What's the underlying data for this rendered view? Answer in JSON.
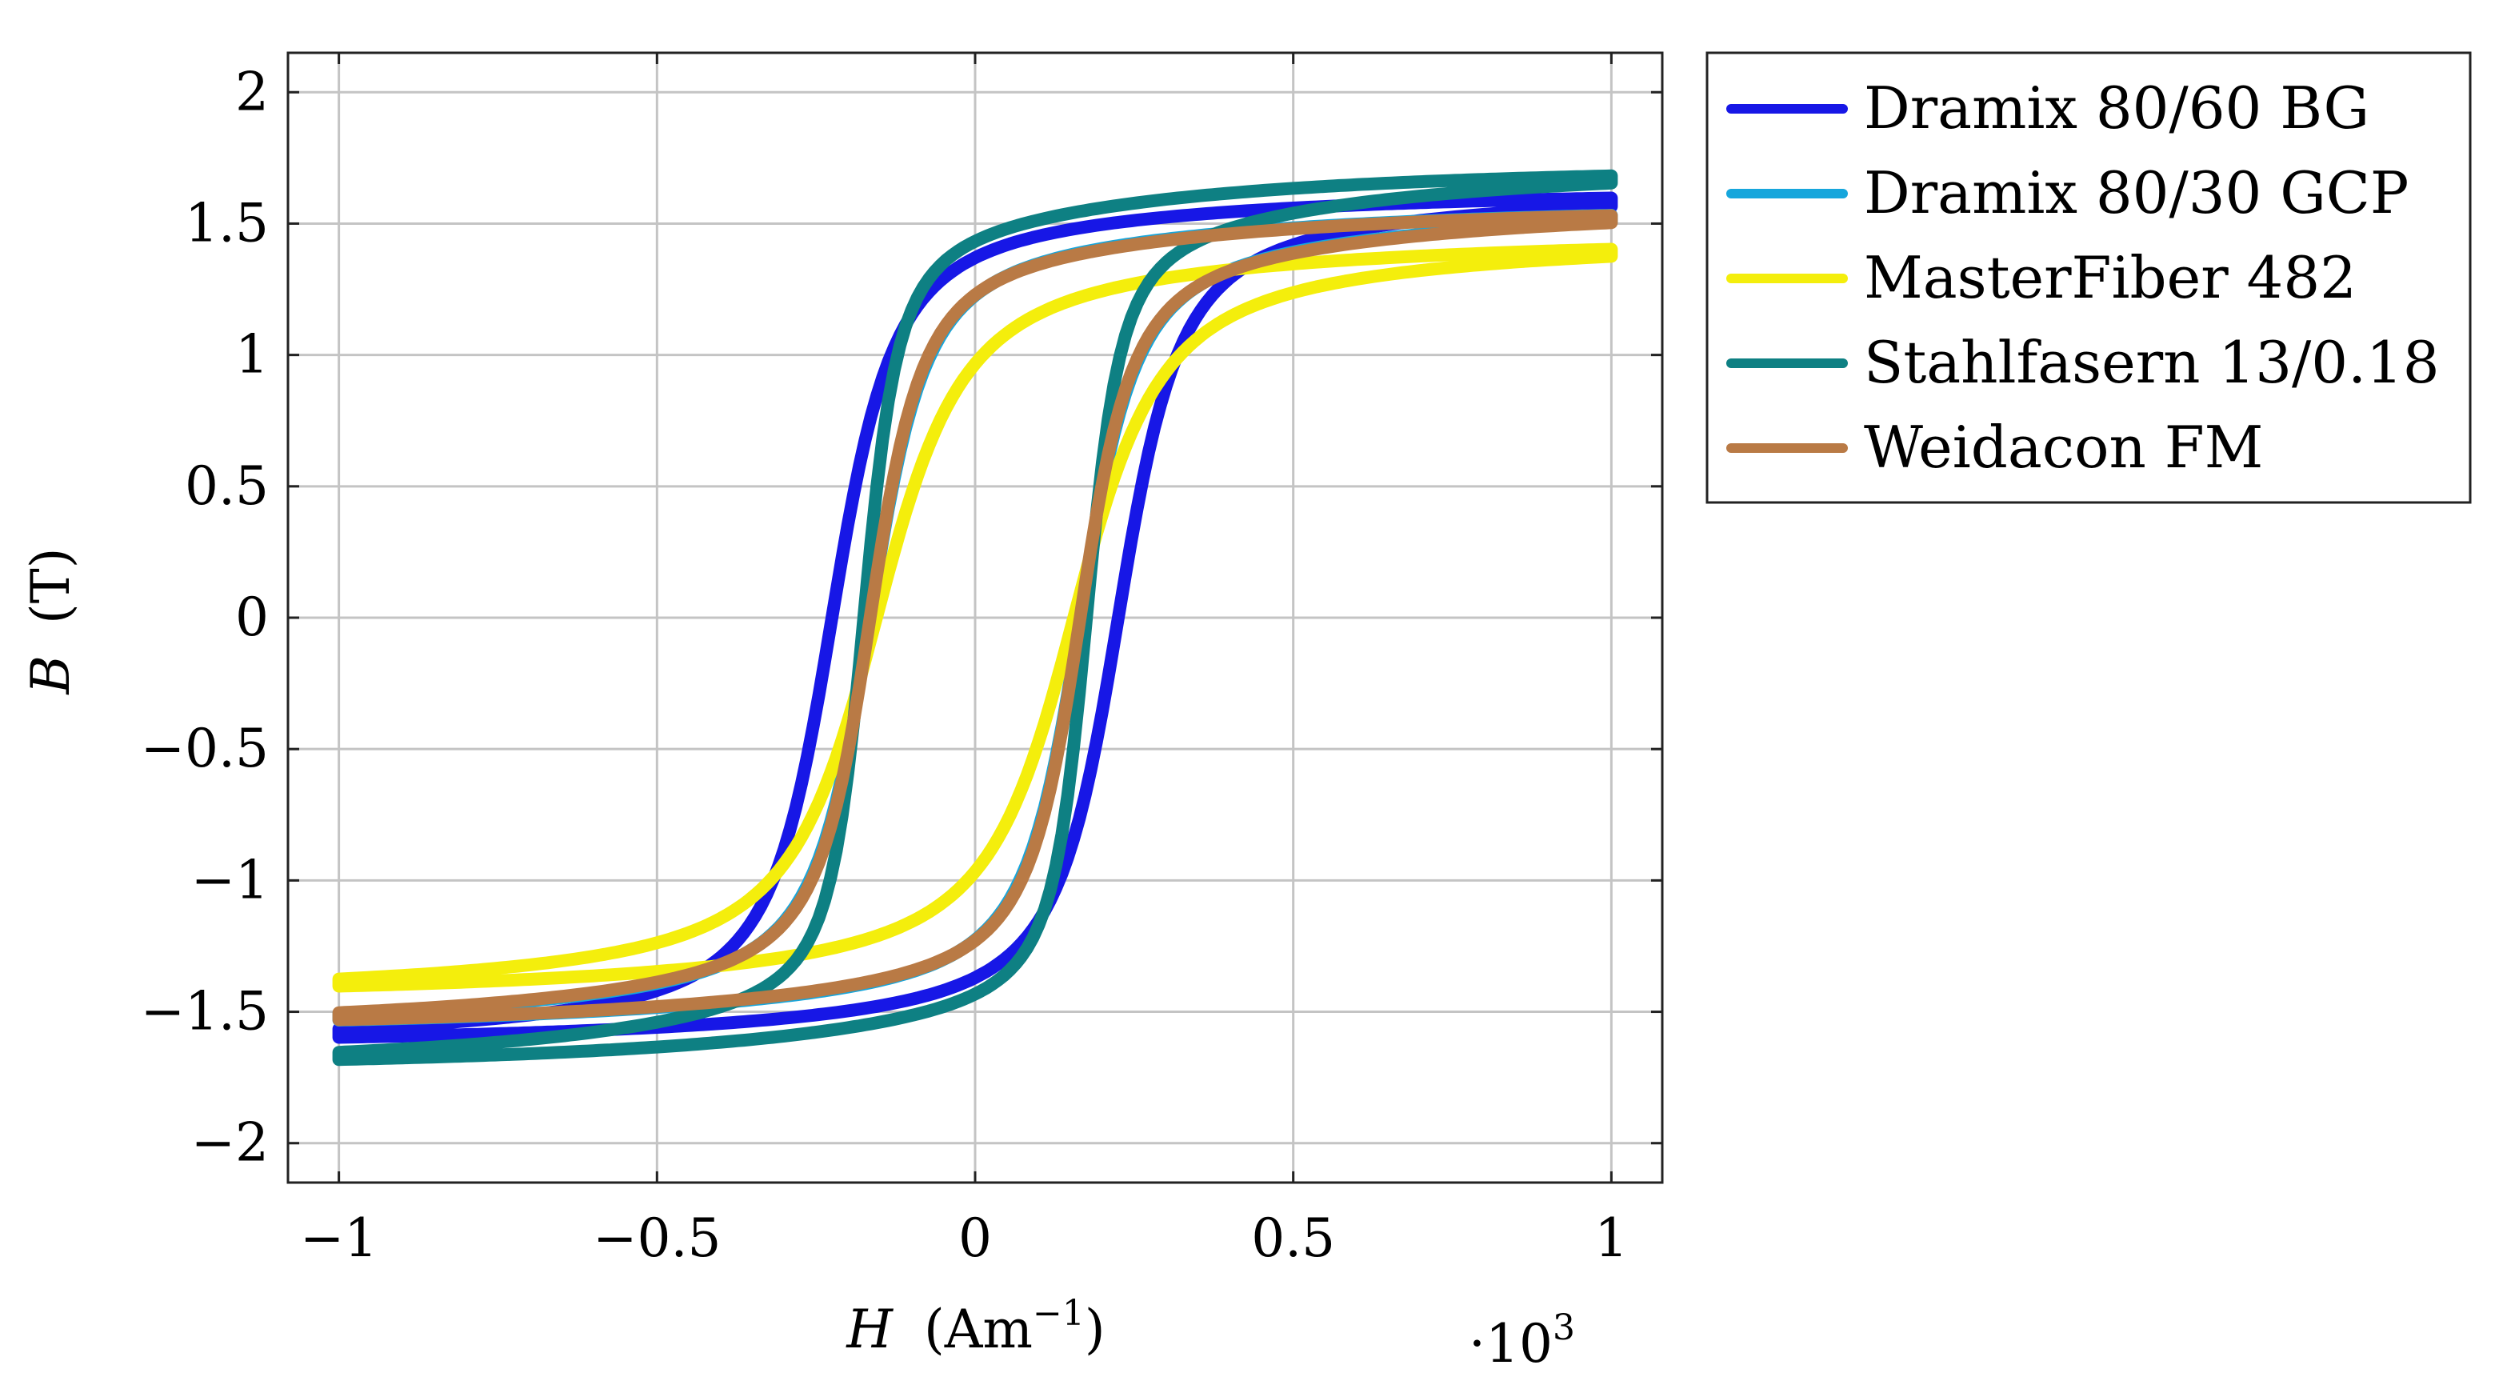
{
  "chart_data": {
    "type": "line",
    "title": "",
    "xlabel": "H (Am⁻¹)",
    "xlabel_parts": {
      "var": "H",
      "unit_open": "(Am",
      "unit_exp": "−1",
      "unit_close": ")"
    },
    "ylabel": "B (T)",
    "ylabel_parts": {
      "var": "B",
      "unit": "(T)"
    },
    "x_multiplier": "·10³",
    "x_multiplier_parts": {
      "base": "·10",
      "exp": "3"
    },
    "xlim": [
      -1.08,
      1.08
    ],
    "ylim": [
      -2.15,
      2.15
    ],
    "x_ticks": [
      -1,
      -0.5,
      0,
      0.5,
      1
    ],
    "x_tick_labels": [
      "−1",
      "−0.5",
      "0",
      "0.5",
      "1"
    ],
    "y_ticks": [
      2,
      1.5,
      1,
      0.5,
      0,
      -0.5,
      -1,
      -1.5,
      -2
    ],
    "y_tick_labels": [
      "2",
      "1.5",
      "1",
      "0.5",
      "0",
      "−0.5",
      "−1",
      "−1.5",
      "−2"
    ],
    "grid": true,
    "legend_position": "outside-top-right",
    "series": [
      {
        "name": "Dramix 80/60 BG",
        "color": "#1717e6",
        "loop": {
          "bsat": 1.62,
          "hc": 0.225,
          "knee": 0.1,
          "drop": 0.2,
          "soft": 0.05
        }
      },
      {
        "name": "Dramix 80/30 GCP",
        "color": "#16a6dc",
        "loop": {
          "bsat": 1.56,
          "hc": 0.165,
          "knee": 0.09,
          "drop": 0.24,
          "soft": 0.05
        }
      },
      {
        "name": "MasterFiber 482",
        "color": "#f4ee0c",
        "loop": {
          "bsat": 1.44,
          "hc": 0.155,
          "knee": 0.14,
          "drop": 0.2,
          "soft": 0.08
        }
      },
      {
        "name": "Stahlfasern 13/0.18",
        "color": "#0e8083",
        "loop": {
          "bsat": 1.71,
          "hc": 0.175,
          "knee": 0.055,
          "drop": 0.33,
          "soft": 0.03
        }
      },
      {
        "name": "Weidacon FM",
        "color": "#b97a45",
        "loop": {
          "bsat": 1.56,
          "hc": 0.165,
          "knee": 0.085,
          "drop": 0.26,
          "soft": 0.05
        }
      }
    ]
  }
}
